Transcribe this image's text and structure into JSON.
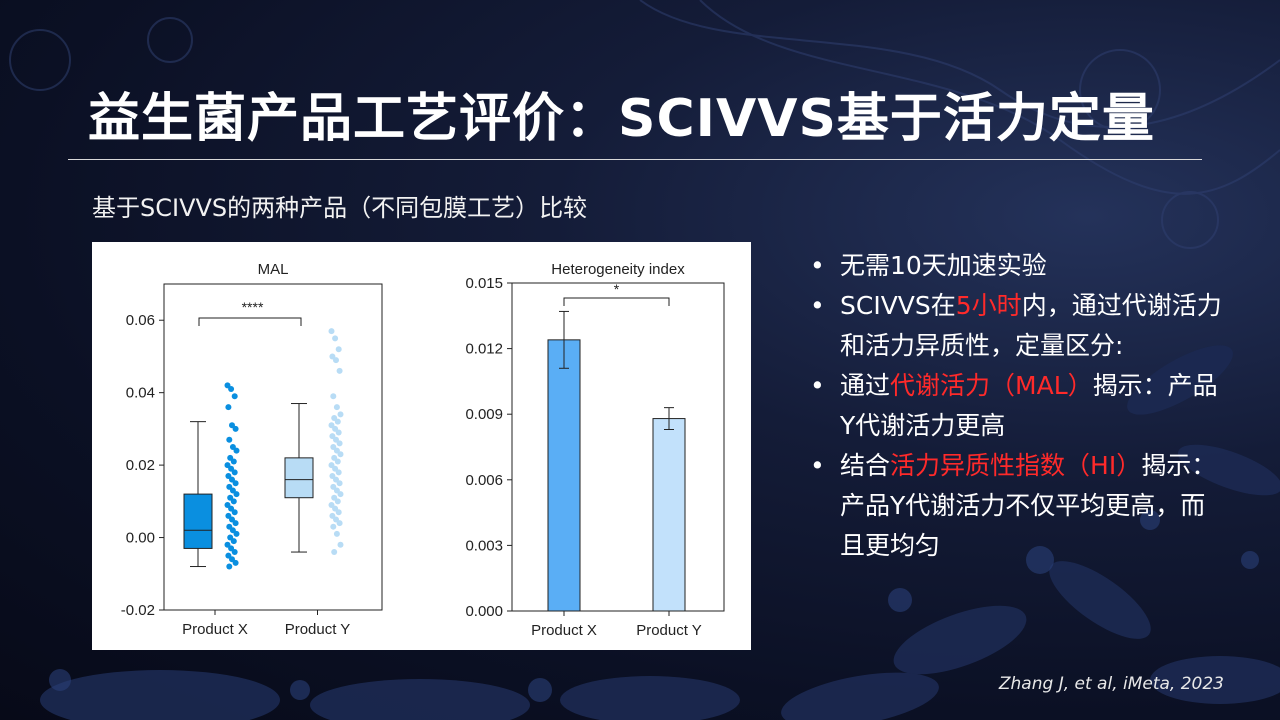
{
  "slide": {
    "title": "益生菌产品工艺评价：SCIVVS基于活力定量",
    "subtitle": "基于SCIVVS的两种产品（不同包膜工艺）比较",
    "citation": "Zhang J, et al, iMeta, 2023",
    "bullets": [
      {
        "parts": [
          {
            "text": "无需10天加速实验",
            "highlight": false
          }
        ]
      },
      {
        "parts": [
          {
            "text": "SCIVVS在",
            "highlight": false
          },
          {
            "text": "5小时",
            "highlight": true
          },
          {
            "text": "内，通过代谢活力和活力异质性，定量区分:",
            "highlight": false
          }
        ]
      },
      {
        "parts": [
          {
            "text": "通过",
            "highlight": false
          },
          {
            "text": "代谢活力（MAL）",
            "highlight": true
          },
          {
            "text": "揭示：产品Y代谢活力更高",
            "highlight": false
          }
        ]
      },
      {
        "parts": [
          {
            "text": "结合",
            "highlight": false
          },
          {
            "text": "活力异质性指数（HI）",
            "highlight": true
          },
          {
            "text": "揭示：产品Y代谢活力不仅平均更高，而且更均匀",
            "highlight": false
          }
        ]
      }
    ],
    "bullet_symbol": "•",
    "colors": {
      "highlight": "#ff2a2a",
      "product_x": "#0a8fe0",
      "product_y": "#b8dcf5",
      "bar_x": "#5aaef5",
      "bar_y": "#c2e1fb"
    }
  },
  "chart_data": [
    {
      "type": "box",
      "title": "MAL",
      "categories": [
        "Product X",
        "Product Y"
      ],
      "ylim": [
        -0.02,
        0.07
      ],
      "yticks": [
        "-0.02",
        "0.00",
        "0.02",
        "0.04",
        "0.06"
      ],
      "boxes": [
        {
          "name": "Product X",
          "min": -0.008,
          "q1": -0.003,
          "median": 0.002,
          "q3": 0.012,
          "max": 0.032
        },
        {
          "name": "Product Y",
          "min": -0.004,
          "q1": 0.011,
          "median": 0.016,
          "q3": 0.022,
          "max": 0.037
        }
      ],
      "points": [
        {
          "name": "Product X",
          "values": [
            0.042,
            0.041,
            0.039,
            0.036,
            0.031,
            0.03,
            0.027,
            0.025,
            0.024,
            0.022,
            0.021,
            0.02,
            0.019,
            0.018,
            0.017,
            0.016,
            0.015,
            0.014,
            0.013,
            0.012,
            0.011,
            0.01,
            0.009,
            0.008,
            0.007,
            0.006,
            0.005,
            0.004,
            0.003,
            0.002,
            0.001,
            0.0,
            -0.001,
            -0.002,
            -0.003,
            -0.004,
            -0.005,
            -0.006,
            -0.007,
            -0.008
          ]
        },
        {
          "name": "Product Y",
          "values": [
            0.057,
            0.055,
            0.052,
            0.05,
            0.049,
            0.046,
            0.039,
            0.036,
            0.034,
            0.033,
            0.032,
            0.031,
            0.03,
            0.029,
            0.028,
            0.027,
            0.026,
            0.025,
            0.024,
            0.023,
            0.022,
            0.021,
            0.02,
            0.019,
            0.018,
            0.017,
            0.016,
            0.015,
            0.014,
            0.013,
            0.012,
            0.011,
            0.01,
            0.009,
            0.008,
            0.007,
            0.006,
            0.005,
            0.004,
            0.003,
            0.001,
            -0.002,
            -0.004
          ]
        }
      ],
      "annotation": "****"
    },
    {
      "type": "bar",
      "title": "Heterogeneity index",
      "categories": [
        "Product X",
        "Product Y"
      ],
      "values": [
        0.0124,
        0.0088
      ],
      "errors": [
        0.0013,
        0.0005
      ],
      "ylim": [
        0,
        0.015
      ],
      "yticks": [
        "0.000",
        "0.003",
        "0.006",
        "0.009",
        "0.012",
        "0.015"
      ],
      "annotation": "*"
    }
  ]
}
